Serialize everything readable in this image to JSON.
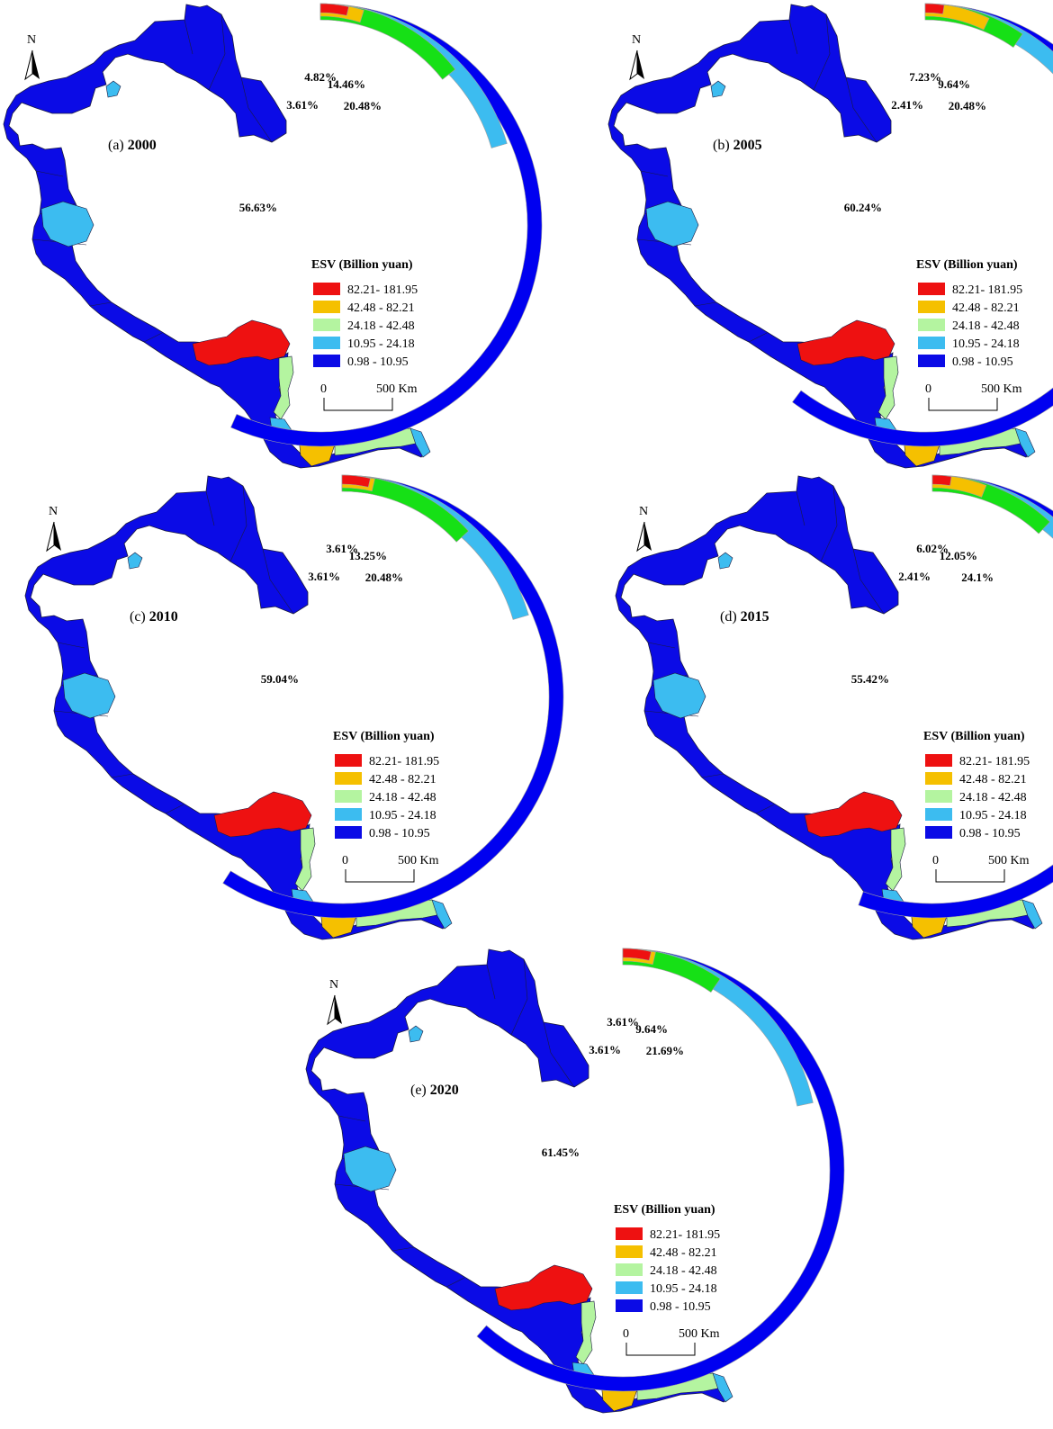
{
  "legend": {
    "title": "ESV (Billion yuan)",
    "classes": [
      {
        "label": "82.21- 181.95",
        "color": "#ee1111"
      },
      {
        "label": "42.48 - 82.21",
        "color": "#f5c000"
      },
      {
        "label": "24.18 - 42.48",
        "color": "#b4f4a0"
      },
      {
        "label": "10.95 - 24.18",
        "color": "#3cbcf0"
      },
      {
        "label": "0.98 - 10.95",
        "color": "#0b0be6"
      }
    ]
  },
  "ring_colors": [
    "#0000f0",
    "#3cbcf0",
    "#16e016",
    "#f5c000",
    "#ee1111"
  ],
  "ring_border_color": "#a0a0a0",
  "scale_bar": {
    "start_label": "0",
    "end_label": "500 Km"
  },
  "north_label": "N",
  "panels": [
    {
      "id": "a",
      "label": "(a)",
      "year": "2000",
      "percentages": [
        {
          "value": 56.63,
          "text": "56.63%"
        },
        {
          "value": 20.48,
          "text": "20.48%"
        },
        {
          "value": 14.46,
          "text": "14.46%"
        },
        {
          "value": 4.82,
          "text": "4.82%"
        },
        {
          "value": 3.61,
          "text": "3.61%"
        }
      ]
    },
    {
      "id": "b",
      "label": "(b)",
      "year": "2005",
      "percentages": [
        {
          "value": 60.24,
          "text": "60.24%"
        },
        {
          "value": 20.48,
          "text": "20.48%"
        },
        {
          "value": 9.64,
          "text": "9.64%"
        },
        {
          "value": 7.23,
          "text": "7.23%"
        },
        {
          "value": 2.41,
          "text": "2.41%"
        }
      ]
    },
    {
      "id": "c",
      "label": "(c)",
      "year": "2010",
      "percentages": [
        {
          "value": 59.04,
          "text": "59.04%"
        },
        {
          "value": 20.48,
          "text": "20.48%"
        },
        {
          "value": 13.25,
          "text": "13.25%"
        },
        {
          "value": 3.61,
          "text": "3.61%"
        },
        {
          "value": 3.61,
          "text": "3.61%"
        }
      ]
    },
    {
      "id": "d",
      "label": "(d)",
      "year": "2015",
      "percentages": [
        {
          "value": 55.42,
          "text": "55.42%"
        },
        {
          "value": 24.1,
          "text": "24.1%"
        },
        {
          "value": 12.05,
          "text": "12.05%"
        },
        {
          "value": 6.02,
          "text": "6.02%"
        },
        {
          "value": 2.41,
          "text": "2.41%"
        }
      ]
    },
    {
      "id": "e",
      "label": "(e)",
      "year": "2020",
      "percentages": [
        {
          "value": 61.45,
          "text": "61.45%"
        },
        {
          "value": 21.69,
          "text": "21.69%"
        },
        {
          "value": 9.64,
          "text": "9.64%"
        },
        {
          "value": 3.61,
          "text": "3.61%"
        },
        {
          "value": 3.61,
          "text": "3.61%"
        }
      ]
    }
  ]
}
